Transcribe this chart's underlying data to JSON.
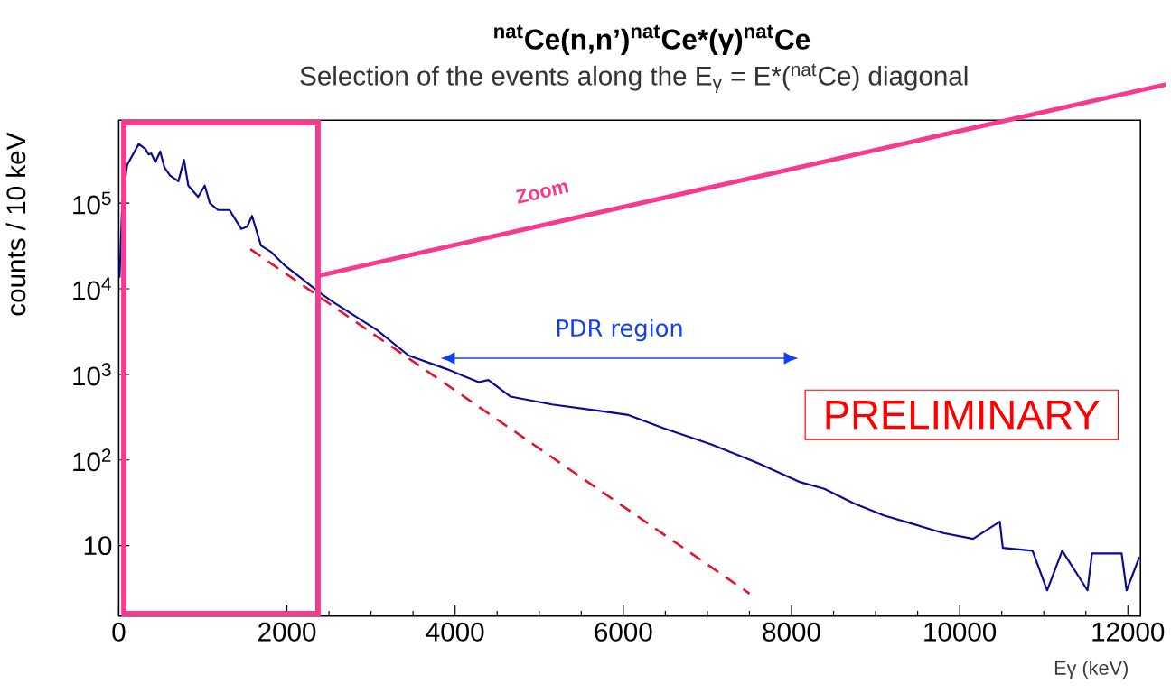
{
  "chart_data": {
    "type": "line",
    "title": "$^{nat}$Ce(n,n’)$^{nat}$Ce*(γ)$^{nat}$Ce",
    "subtitle": "Selection of the events along the E$_{γ}$ = E*($^{nat}$Ce) diagonal",
    "xlabel": "Eγ (keV)",
    "ylabel": "counts / 10 keV",
    "log": "y",
    "xlim": [
      0,
      12150
    ],
    "ylim": [
      1.5,
      930000
    ],
    "xticks": [
      0,
      2000,
      4000,
      6000,
      8000,
      10000,
      12000
    ],
    "yticks": [
      {
        "value": 10,
        "label": "10"
      },
      {
        "value": 100,
        "label": "10$^{2}$"
      },
      {
        "value": 1000,
        "label": "10$^{3}$"
      },
      {
        "value": 10000,
        "label": "10$^{4}$"
      },
      {
        "value": 100000,
        "label": "10$^{5}$"
      }
    ],
    "series": [
      {
        "color": "#0a0a96",
        "x": [
          10,
          42,
          100,
          238,
          317,
          356,
          387,
          435,
          493,
          544,
          611,
          709,
          776,
          827,
          944,
          1023,
          1083,
          1181,
          1318,
          1456,
          1526,
          1585,
          1691,
          1809,
          1966,
          2162,
          2358,
          2539,
          3069,
          3447,
          3902,
          4281,
          4395,
          4660,
          5153,
          5720,
          6062,
          6478,
          7046,
          7614,
          8106,
          8391,
          8745,
          9099,
          9452,
          9806,
          10159,
          10477,
          10513,
          10866,
          11040,
          11219,
          11520,
          11573,
          11926,
          11985,
          12138
        ],
        "values": [
          13500,
          105000,
          280000,
          490000,
          430000,
          370000,
          380000,
          300000,
          400000,
          260000,
          210000,
          180000,
          320000,
          160000,
          118000,
          160000,
          100000,
          83000,
          83000,
          50000,
          53000,
          71000,
          32000,
          27000,
          19000,
          13500,
          9500,
          7100,
          3300,
          1660,
          1150,
          810,
          860,
          550,
          445,
          375,
          335,
          235,
          152,
          91,
          55,
          46,
          31,
          22.5,
          17.8,
          14,
          12,
          19,
          9.4,
          8.7,
          3.0,
          8.7,
          3.0,
          8.1,
          8.1,
          3.0,
          7.4
        ]
      },
      {
        "color": "#e8112d",
        "line_style": "dashed",
        "x": [
          1565,
          7501
        ],
        "values": [
          29000,
          2.75
        ]
      }
    ],
    "annotations": [
      "Zoom",
      "PDR region",
      "PRELIMINARY"
    ]
  }
}
